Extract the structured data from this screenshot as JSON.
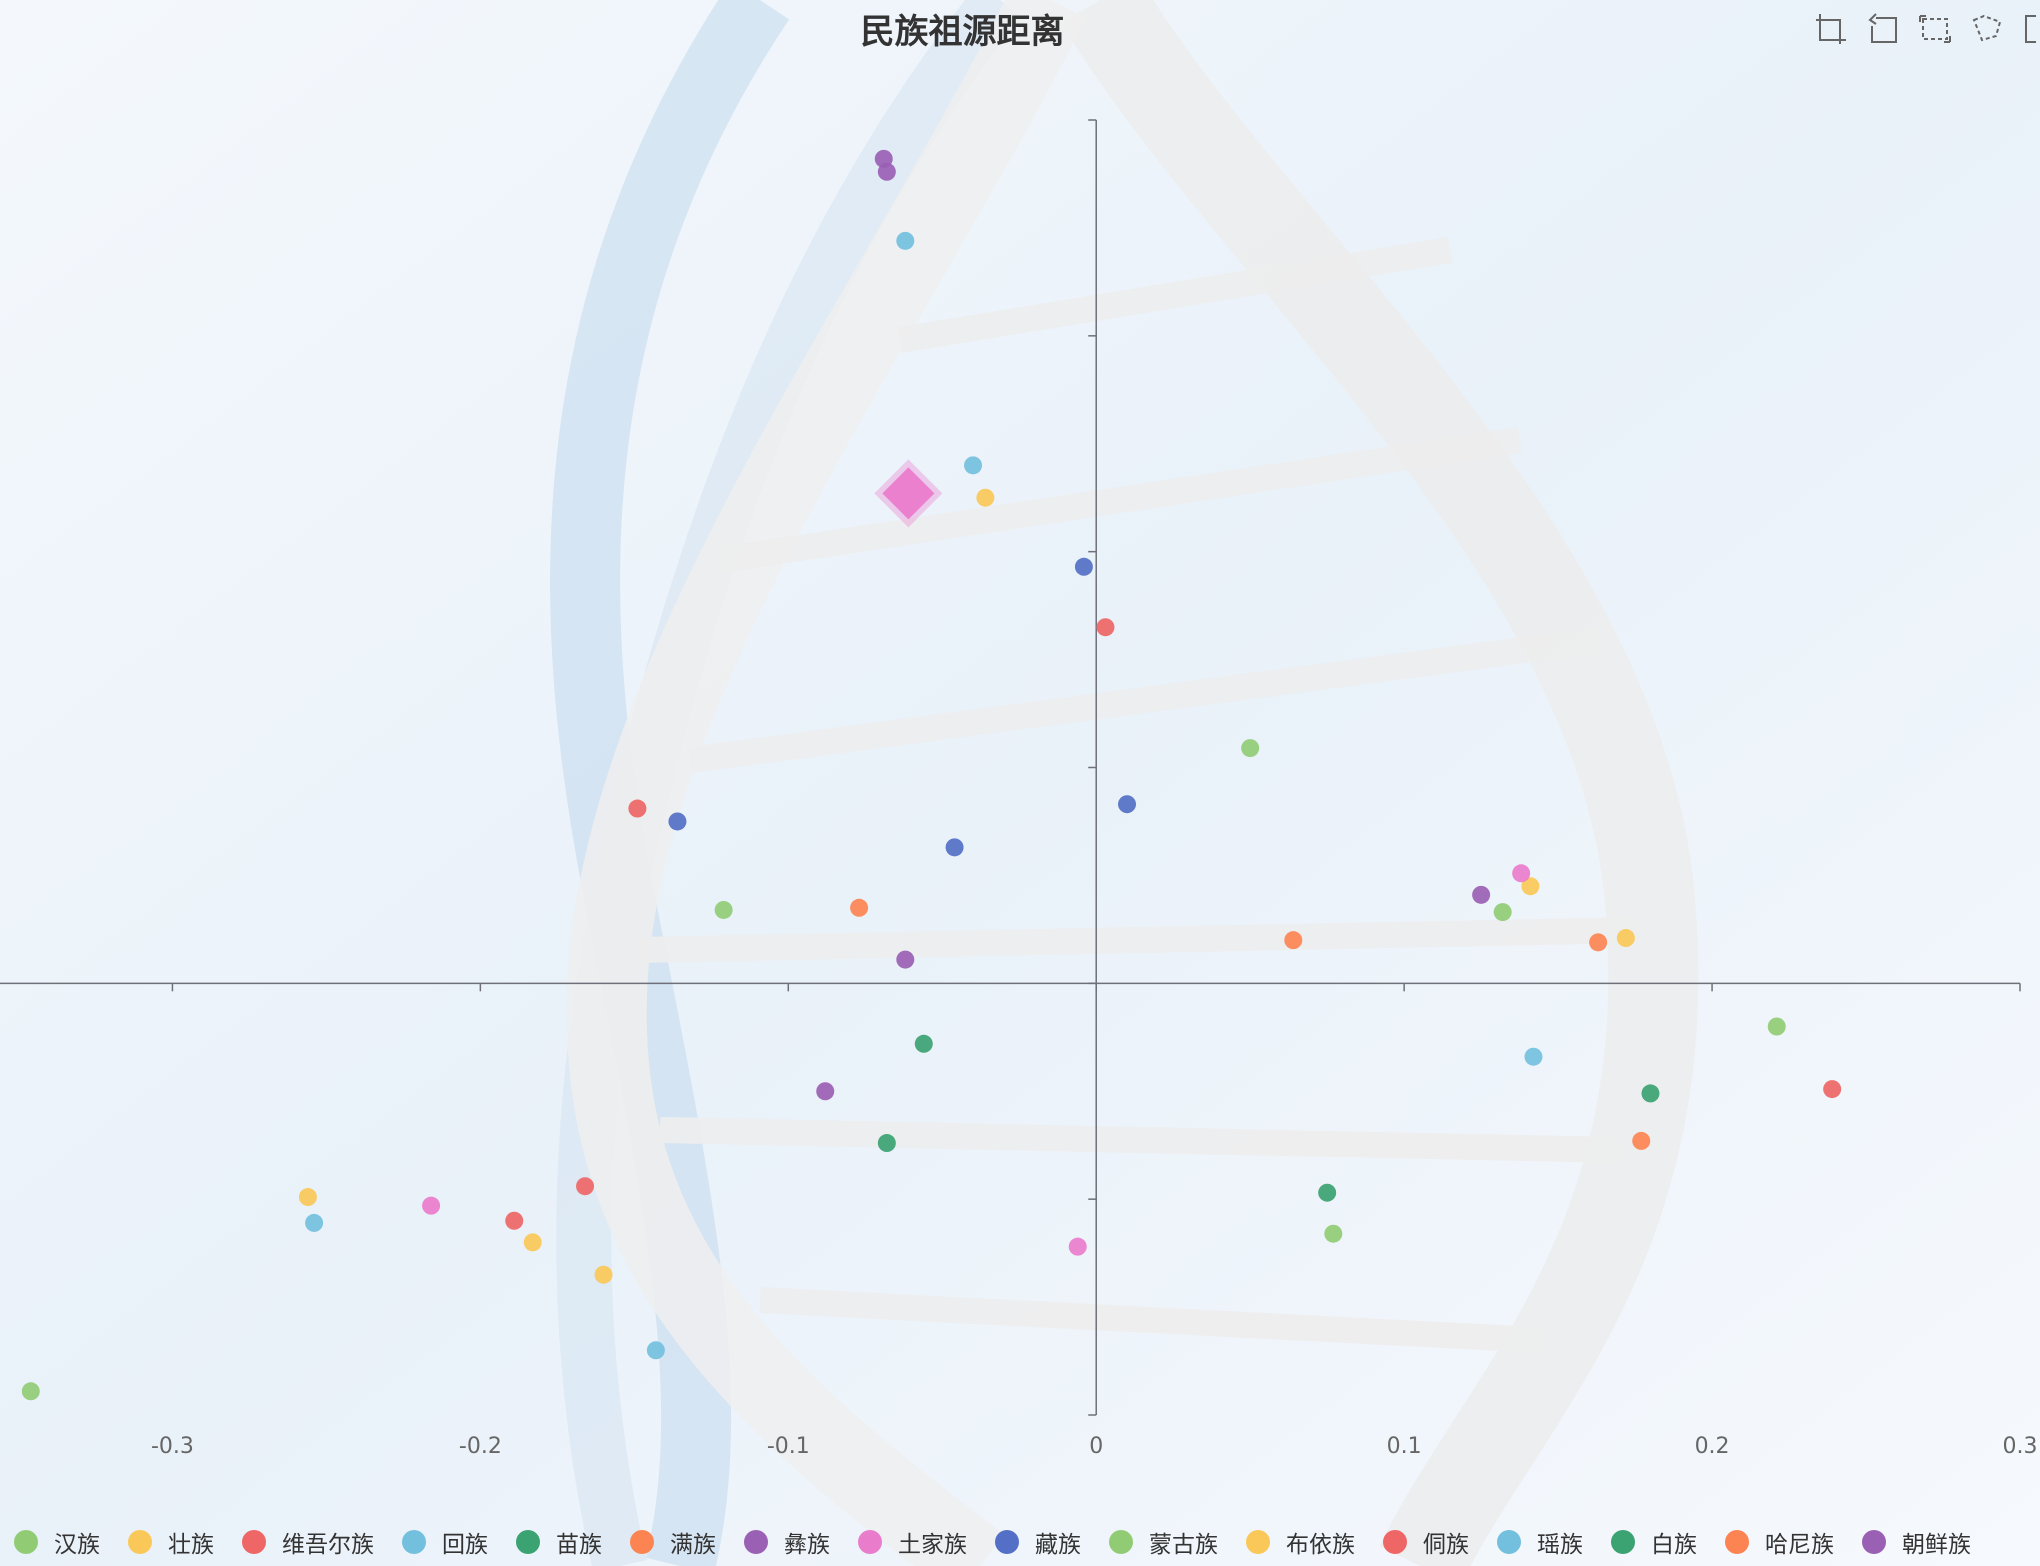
{
  "title": "民族祖源距离",
  "toolbox": [
    {
      "name": "zoom-icon"
    },
    {
      "name": "zoom-reset-icon"
    },
    {
      "name": "rect-select-icon"
    },
    {
      "name": "lasso-select-icon"
    }
  ],
  "chart_data": {
    "type": "scatter",
    "title": "民族祖源距离",
    "xlabel": "",
    "ylabel": "",
    "xlim": [
      -0.356,
      0.3
    ],
    "ylim": [
      -0.2,
      0.4
    ],
    "x_ticks": [
      "-0.3",
      "-0.2",
      "-0.1",
      "0",
      "0.1",
      "0.2",
      "0.3"
    ],
    "grid": false,
    "legend_position": "bottom",
    "series": [
      {
        "name": "汉族",
        "color": "#91cc75",
        "points": [
          [
            -0.346,
            -0.189
          ],
          [
            -0.121,
            0.034
          ],
          [
            0.05,
            0.109
          ],
          [
            0.132,
            0.033
          ],
          [
            0.221,
            -0.02
          ],
          [
            0.077,
            -0.116
          ]
        ]
      },
      {
        "name": "壮族",
        "color": "#fac858",
        "points": [
          [
            -0.256,
            -0.099
          ],
          [
            -0.183,
            -0.12
          ],
          [
            -0.16,
            -0.135
          ],
          [
            -0.036,
            0.225
          ],
          [
            0.141,
            0.045
          ],
          [
            0.172,
            0.021
          ]
        ]
      },
      {
        "name": "维吾尔族",
        "color": "#ee6666",
        "points": [
          [
            -0.149,
            0.081
          ],
          [
            0.003,
            0.165
          ],
          [
            -0.166,
            -0.094
          ],
          [
            -0.189,
            -0.11
          ],
          [
            0.239,
            -0.049
          ]
        ]
      },
      {
        "name": "回族",
        "color": "#73c0de",
        "points": [
          [
            -0.062,
            0.344
          ],
          [
            -0.04,
            0.24
          ],
          [
            -0.254,
            -0.111
          ],
          [
            -0.143,
            -0.17
          ],
          [
            0.142,
            -0.034
          ]
        ]
      },
      {
        "name": "苗族",
        "color": "#3ba272",
        "points": [
          [
            -0.056,
            -0.028
          ],
          [
            -0.068,
            -0.074
          ],
          [
            0.075,
            -0.097
          ],
          [
            0.18,
            -0.051
          ]
        ]
      },
      {
        "name": "满族",
        "color": "#fc8452",
        "points": [
          [
            -0.077,
            0.035
          ],
          [
            0.064,
            0.02
          ],
          [
            0.163,
            0.019
          ],
          [
            0.177,
            -0.073
          ]
        ]
      },
      {
        "name": "彝族",
        "color": "#9a60b4",
        "points": [
          [
            -0.069,
            0.382
          ],
          [
            -0.068,
            0.376
          ],
          [
            -0.062,
            0.011
          ],
          [
            -0.088,
            -0.05
          ],
          [
            0.125,
            0.041
          ]
        ]
      },
      {
        "name": "土家族",
        "color": "#ea7ccc",
        "points": [
          [
            -0.061,
            0.227
          ],
          [
            -0.216,
            -0.103
          ],
          [
            -0.006,
            -0.122
          ],
          [
            0.138,
            0.051
          ]
        ]
      },
      {
        "name": "藏族",
        "color": "#5470c6",
        "points": [
          [
            -0.004,
            0.193
          ],
          [
            -0.136,
            0.075
          ],
          [
            -0.046,
            0.063
          ],
          [
            0.01,
            0.083
          ]
        ]
      },
      {
        "name": "蒙古族",
        "color": "#91cc75",
        "points": []
      },
      {
        "name": "布依族",
        "color": "#fac858",
        "points": []
      },
      {
        "name": "侗族",
        "color": "#ee6666",
        "points": []
      },
      {
        "name": "瑶族",
        "color": "#73c0de",
        "points": []
      },
      {
        "name": "白族",
        "color": "#3ba272",
        "points": []
      },
      {
        "name": "哈尼族",
        "color": "#fc8452",
        "points": []
      },
      {
        "name": "朝鲜族",
        "color": "#9a60b4",
        "points": []
      }
    ],
    "highlight": {
      "series": "土家族",
      "index": 0,
      "symbol": "diamond"
    }
  }
}
